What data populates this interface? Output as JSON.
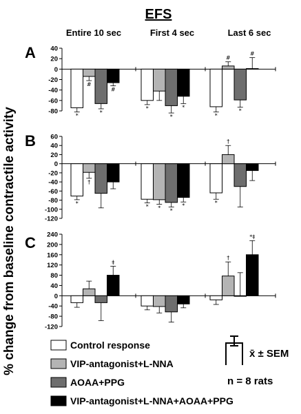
{
  "chart_data": {
    "type": "bar",
    "title": "EFS",
    "ylabel": "% change from baseline contractile activity",
    "groups": [
      "Entire 10 sec",
      "First 4 sec",
      "Last 6 sec"
    ],
    "series_names": [
      "Control response",
      "VIP-antagonist+L-NNA",
      "AOAA+PPG",
      "VIP-antagonist+L-NNA+AOAA+PPG"
    ],
    "series_colors": [
      "#ffffff",
      "#b4b4b4",
      "#6e6e6e",
      "#000000"
    ],
    "panels": [
      {
        "label": "A",
        "ylim": [
          -80,
          40
        ],
        "yticks": [
          "40",
          "20",
          "0",
          "-20",
          "-40",
          "-60",
          "-80"
        ],
        "tick_values": [
          40,
          20,
          0,
          -20,
          -40,
          -60,
          -80
        ],
        "series": [
          {
            "values": [
              -74,
              -60,
              -72
            ],
            "err": [
              8,
              8,
              10
            ],
            "marks": [
              "*",
              "*",
              "*"
            ]
          },
          {
            "values": [
              -14,
              -42,
              6
            ],
            "err": [
              8,
              18,
              8
            ],
            "marks": [
              "#",
              "",
              "#"
            ]
          },
          {
            "values": [
              -66,
              -70,
              -59
            ],
            "err": [
              10,
              14,
              14
            ],
            "marks": [
              "*",
              "*",
              "*"
            ]
          },
          {
            "values": [
              -26,
              -52,
              1
            ],
            "err": [
              6,
              14,
              21
            ],
            "marks": [
              "#",
              "*",
              "#"
            ]
          }
        ]
      },
      {
        "label": "B",
        "ylim": [
          -120,
          60
        ],
        "yticks": [
          "60",
          "40",
          "20",
          "0",
          "-20",
          "-40",
          "-60",
          "-80",
          "-100",
          "-120"
        ],
        "tick_values": [
          60,
          40,
          20,
          0,
          -20,
          -40,
          -60,
          -80,
          -100,
          -120
        ],
        "series": [
          {
            "values": [
              -71,
              -78,
              -64
            ],
            "err": [
              8,
              8,
              14
            ],
            "marks": [
              "*",
              "*",
              "*"
            ]
          },
          {
            "values": [
              -19,
              -79,
              20
            ],
            "err": [
              13,
              10,
              20
            ],
            "marks": [
              "†",
              "*",
              "†"
            ]
          },
          {
            "values": [
              -65,
              -85,
              -50
            ],
            "err": [
              32,
              10,
              45
            ],
            "marks": [
              "",
              "*",
              ""
            ]
          },
          {
            "values": [
              -40,
              -74,
              -15
            ],
            "err": [
              15,
              10,
              22
            ],
            "marks": [
              "",
              "*",
              ""
            ]
          }
        ]
      },
      {
        "label": "C",
        "ylim": [
          -120,
          240
        ],
        "yticks": [
          "240",
          "200",
          "160",
          "120",
          "80",
          "40",
          "0",
          "-40",
          "-80",
          "-120"
        ],
        "tick_values": [
          240,
          200,
          160,
          120,
          80,
          40,
          0,
          -40,
          -80,
          -120
        ],
        "series": [
          {
            "values": [
              -27,
              -40,
              -16
            ],
            "err": [
              18,
              15,
              18
            ],
            "marks": [
              "",
              "",
              ""
            ]
          },
          {
            "values": [
              27,
              -42,
              77
            ],
            "err": [
              30,
              25,
              55
            ],
            "marks": [
              "",
              "",
              "†"
            ]
          },
          {
            "values": [
              -27,
              -63,
              0
            ],
            "err": [
              70,
              40,
              90
            ],
            "marks": [
              "",
              "",
              ""
            ]
          },
          {
            "values": [
              80,
              -32,
              160
            ],
            "err": [
              35,
              15,
              55
            ],
            "marks": [
              "‡",
              "",
              "*‡"
            ]
          }
        ]
      }
    ],
    "legend_placement": "bottom-left",
    "legend_stat": "x̄ ± SEM",
    "legend_n": "n = 8 rats"
  }
}
